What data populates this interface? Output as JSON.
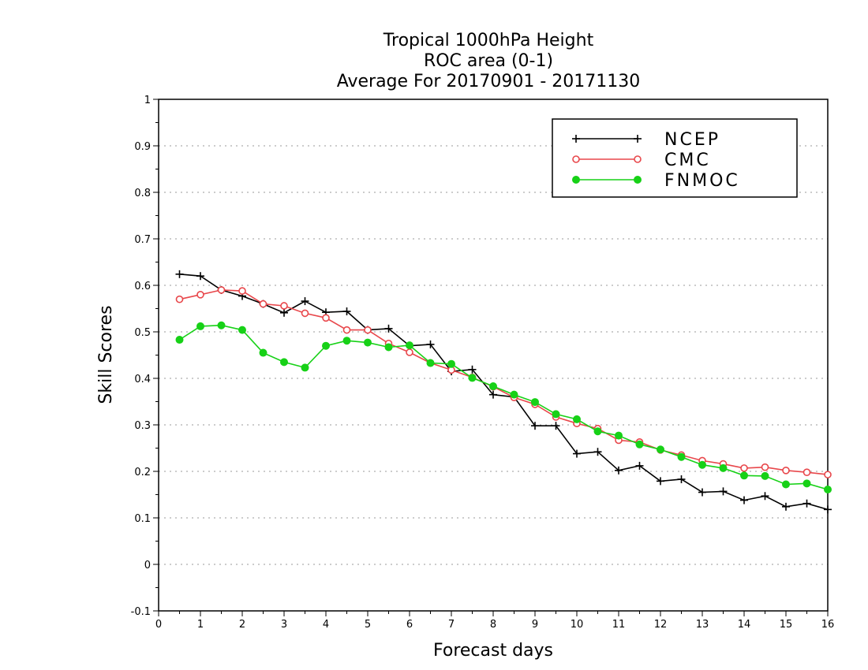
{
  "chart_data": {
    "type": "line",
    "title": [
      "Tropical 1000hPa Height",
      "ROC area (0-1)",
      "Average For 20170901 - 20171130"
    ],
    "xlabel": "Forecast days",
    "ylabel": "Skill Scores",
    "xlim": [
      0,
      16
    ],
    "ylim": [
      -0.1,
      1
    ],
    "x_ticks": [
      "0",
      "1",
      "2",
      "3",
      "4",
      "5",
      "6",
      "7",
      "8",
      "9",
      "10",
      "11",
      "12",
      "13",
      "14",
      "15",
      "16"
    ],
    "y_ticks": [
      "-0.1",
      "0",
      "0.1",
      "0.2",
      "0.3",
      "0.4",
      "0.5",
      "0.6",
      "0.7",
      "0.8",
      "0.9",
      "1"
    ],
    "grid": "horizontal dotted",
    "legend_position": "top-right",
    "x": [
      0.5,
      1,
      1.5,
      2,
      2.5,
      3,
      3.5,
      4,
      4.5,
      5,
      5.5,
      6,
      6.5,
      7,
      7.5,
      8,
      8.5,
      9,
      9.5,
      10,
      10.5,
      11,
      11.5,
      12,
      12.5,
      13,
      13.5,
      14,
      14.5,
      15,
      15.5,
      16
    ],
    "series": [
      {
        "name": "NCEP",
        "color": "#000000",
        "marker": "plus",
        "values": [
          0.624,
          0.62,
          0.59,
          0.577,
          0.56,
          0.541,
          0.566,
          0.542,
          0.544,
          0.504,
          0.507,
          0.47,
          0.473,
          0.415,
          0.419,
          0.365,
          0.36,
          0.298,
          0.298,
          0.238,
          0.242,
          0.202,
          0.212,
          0.179,
          0.183,
          0.155,
          0.157,
          0.138,
          0.147,
          0.124,
          0.131,
          0.118
        ]
      },
      {
        "name": "CMC",
        "color": "#e8474b",
        "marker": "open-circle",
        "values": [
          0.57,
          0.58,
          0.59,
          0.588,
          0.56,
          0.556,
          0.54,
          0.53,
          0.504,
          0.504,
          0.475,
          0.456,
          0.433,
          0.418,
          0.402,
          0.382,
          0.359,
          0.344,
          0.317,
          0.303,
          0.292,
          0.267,
          0.263,
          0.246,
          0.235,
          0.223,
          0.216,
          0.207,
          0.209,
          0.202,
          0.198,
          0.193
        ]
      },
      {
        "name": "FNMOC",
        "color": "#17d117",
        "marker": "filled-circle",
        "values": [
          0.483,
          0.512,
          0.514,
          0.504,
          0.455,
          0.435,
          0.423,
          0.47,
          0.481,
          0.477,
          0.467,
          0.471,
          0.433,
          0.431,
          0.401,
          0.383,
          0.365,
          0.349,
          0.323,
          0.312,
          0.286,
          0.277,
          0.258,
          0.247,
          0.231,
          0.214,
          0.207,
          0.191,
          0.19,
          0.172,
          0.174,
          0.161
        ]
      }
    ]
  }
}
